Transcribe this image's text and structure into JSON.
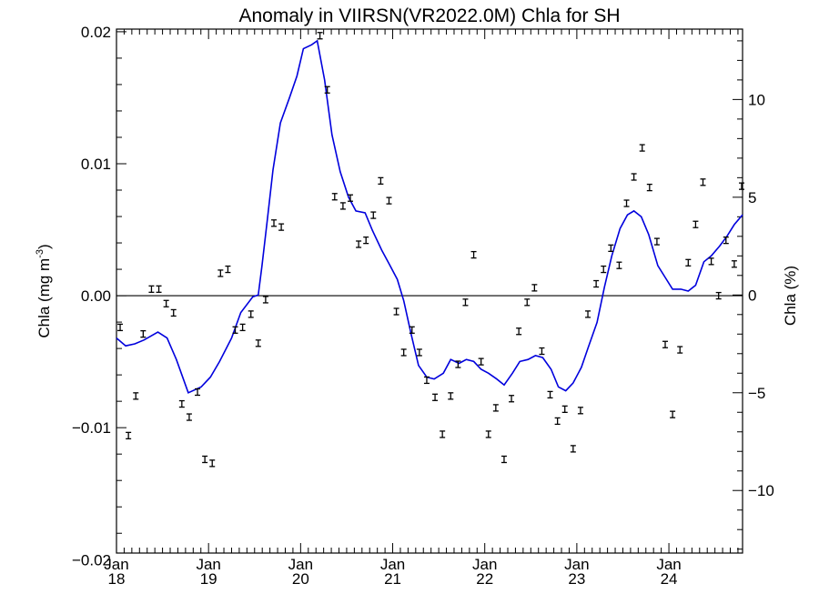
{
  "chart_data": {
    "type": "line",
    "title": "Anomaly in VIIRSN(VR2022.0M) Chla for SH",
    "ylabel_left": "Chla (mg m",
    "ylabel_left_sup": "-3",
    "ylabel_left_close": ")",
    "ylabel_right": "Chla (%)",
    "xlim": [
      2018.0,
      2024.8
    ],
    "ylim_left": [
      -0.0195,
      0.0202
    ],
    "ylim_right": [
      -13.2,
      13.6
    ],
    "x_ticks": [
      {
        "month": "Jan",
        "year": "18",
        "x": 2018.0
      },
      {
        "month": "Jan",
        "year": "19",
        "x": 2019.0
      },
      {
        "month": "Jan",
        "year": "20",
        "x": 2020.0
      },
      {
        "month": "Jan",
        "year": "21",
        "x": 2021.0
      },
      {
        "month": "Jan",
        "year": "22",
        "x": 2022.0
      },
      {
        "month": "Jan",
        "year": "23",
        "x": 2023.0
      },
      {
        "month": "Jan",
        "year": "24",
        "x": 2024.0
      }
    ],
    "y_ticks_left": [
      {
        "label": "0.02",
        "value": 0.02
      },
      {
        "label": "0.01",
        "value": 0.01
      },
      {
        "label": "0.00",
        "value": 0.0
      },
      {
        "label": "−0.01",
        "value": -0.01
      },
      {
        "label": "−0.02",
        "value": -0.02
      }
    ],
    "y_ticks_right": [
      {
        "label": "10",
        "value": 10
      },
      {
        "label": "5",
        "value": 5
      },
      {
        "label": "0",
        "value": 0
      },
      {
        "label": "−5",
        "value": -5
      },
      {
        "label": "−10",
        "value": -10
      }
    ],
    "line_color": "#0000dd",
    "series": [
      {
        "kind": "percent-line",
        "points": [
          [
            2018.0,
            -2.2
          ],
          [
            2018.1,
            -2.6
          ],
          [
            2018.2,
            -2.5
          ],
          [
            2018.3,
            -2.3
          ],
          [
            2018.45,
            -1.9
          ],
          [
            2018.55,
            -2.2
          ],
          [
            2018.65,
            -3.3
          ],
          [
            2018.78,
            -5.0
          ],
          [
            2018.92,
            -4.7
          ],
          [
            2019.02,
            -4.2
          ],
          [
            2019.12,
            -3.4
          ],
          [
            2019.25,
            -2.2
          ],
          [
            2019.35,
            -0.9
          ],
          [
            2019.48,
            -0.1
          ],
          [
            2019.54,
            0.0
          ],
          [
            2019.58,
            1.5
          ],
          [
            2019.64,
            3.9
          ],
          [
            2019.7,
            6.4
          ],
          [
            2019.78,
            8.8
          ],
          [
            2019.88,
            10.1
          ],
          [
            2019.96,
            11.2
          ],
          [
            2020.03,
            12.6
          ],
          [
            2020.12,
            12.8
          ],
          [
            2020.18,
            13.0
          ],
          [
            2020.26,
            11.0
          ],
          [
            2020.34,
            8.2
          ],
          [
            2020.43,
            6.3
          ],
          [
            2020.52,
            5.0
          ],
          [
            2020.6,
            4.3
          ],
          [
            2020.7,
            4.2
          ],
          [
            2020.78,
            3.3
          ],
          [
            2020.88,
            2.3
          ],
          [
            2020.96,
            1.6
          ],
          [
            2021.05,
            0.8
          ],
          [
            2021.12,
            -0.3
          ],
          [
            2021.2,
            -2.0
          ],
          [
            2021.28,
            -3.6
          ],
          [
            2021.37,
            -4.2
          ],
          [
            2021.45,
            -4.3
          ],
          [
            2021.55,
            -4.0
          ],
          [
            2021.63,
            -3.3
          ],
          [
            2021.72,
            -3.5
          ],
          [
            2021.8,
            -3.3
          ],
          [
            2021.88,
            -3.4
          ],
          [
            2021.96,
            -3.8
          ],
          [
            2022.04,
            -4.0
          ],
          [
            2022.13,
            -4.3
          ],
          [
            2022.21,
            -4.6
          ],
          [
            2022.3,
            -4.0
          ],
          [
            2022.38,
            -3.4
          ],
          [
            2022.47,
            -3.3
          ],
          [
            2022.55,
            -3.1
          ],
          [
            2022.63,
            -3.2
          ],
          [
            2022.72,
            -3.8
          ],
          [
            2022.8,
            -4.7
          ],
          [
            2022.88,
            -4.9
          ],
          [
            2022.96,
            -4.5
          ],
          [
            2023.05,
            -3.7
          ],
          [
            2023.13,
            -2.6
          ],
          [
            2023.22,
            -1.4
          ],
          [
            2023.3,
            0.4
          ],
          [
            2023.38,
            2.0
          ],
          [
            2023.47,
            3.4
          ],
          [
            2023.55,
            4.1
          ],
          [
            2023.62,
            4.3
          ],
          [
            2023.7,
            4.0
          ],
          [
            2023.78,
            3.1
          ],
          [
            2023.88,
            1.5
          ],
          [
            2023.96,
            0.9
          ],
          [
            2024.04,
            0.3
          ],
          [
            2024.13,
            0.3
          ],
          [
            2024.21,
            0.2
          ],
          [
            2024.29,
            0.5
          ],
          [
            2024.38,
            1.7
          ],
          [
            2024.46,
            2.0
          ],
          [
            2024.55,
            2.5
          ],
          [
            2024.63,
            3.0
          ],
          [
            2024.71,
            3.6
          ],
          [
            2024.8,
            4.1
          ]
        ]
      },
      {
        "kind": "anomaly-points-with-error-bars",
        "points": [
          [
            2018.04,
            -0.0024
          ],
          [
            2018.13,
            -0.0106
          ],
          [
            2018.21,
            -0.0076
          ],
          [
            2018.29,
            -0.0029
          ],
          [
            2018.38,
            0.0005
          ],
          [
            2018.46,
            0.0005
          ],
          [
            2018.54,
            -0.0006
          ],
          [
            2018.62,
            -0.0013
          ],
          [
            2018.71,
            -0.0082
          ],
          [
            2018.79,
            -0.0092
          ],
          [
            2018.88,
            -0.0073
          ],
          [
            2018.96,
            -0.0124
          ],
          [
            2019.04,
            -0.0127
          ],
          [
            2019.13,
            0.0017
          ],
          [
            2019.21,
            0.002
          ],
          [
            2019.29,
            -0.0026
          ],
          [
            2019.37,
            -0.0024
          ],
          [
            2019.46,
            -0.0014
          ],
          [
            2019.54,
            -0.0036
          ],
          [
            2019.62,
            -0.0003
          ],
          [
            2019.71,
            0.0055
          ],
          [
            2019.79,
            0.0052
          ],
          [
            2020.21,
            0.0197
          ],
          [
            2020.29,
            0.0156
          ],
          [
            2020.37,
            0.0075
          ],
          [
            2020.46,
            0.0068
          ],
          [
            2020.54,
            0.0074
          ],
          [
            2020.63,
            0.0039
          ],
          [
            2020.71,
            0.0042
          ],
          [
            2020.79,
            0.0061
          ],
          [
            2020.87,
            0.0087
          ],
          [
            2020.96,
            0.0072
          ],
          [
            2021.04,
            -0.0012
          ],
          [
            2021.12,
            -0.0043
          ],
          [
            2021.21,
            -0.0026
          ],
          [
            2021.29,
            -0.0043
          ],
          [
            2021.37,
            -0.0064
          ],
          [
            2021.46,
            -0.0077
          ],
          [
            2021.54,
            -0.0105
          ],
          [
            2021.63,
            -0.0076
          ],
          [
            2021.71,
            -0.0052
          ],
          [
            2021.79,
            -0.0005
          ],
          [
            2021.88,
            0.0031
          ],
          [
            2021.96,
            -0.005
          ],
          [
            2022.04,
            -0.0105
          ],
          [
            2022.12,
            -0.0085
          ],
          [
            2022.21,
            -0.0124
          ],
          [
            2022.29,
            -0.0078
          ],
          [
            2022.37,
            -0.0027
          ],
          [
            2022.46,
            -0.0005
          ],
          [
            2022.54,
            0.0006
          ],
          [
            2022.62,
            -0.0042
          ],
          [
            2022.71,
            -0.0075
          ],
          [
            2022.79,
            -0.0095
          ],
          [
            2022.87,
            -0.0086
          ],
          [
            2022.96,
            -0.0116
          ],
          [
            2023.04,
            -0.0087
          ],
          [
            2023.12,
            -0.0014
          ],
          [
            2023.21,
            0.0009
          ],
          [
            2023.29,
            0.002
          ],
          [
            2023.37,
            0.0036
          ],
          [
            2023.46,
            0.0023
          ],
          [
            2023.54,
            0.007
          ],
          [
            2023.62,
            0.009
          ],
          [
            2023.71,
            0.0112
          ],
          [
            2023.79,
            0.0082
          ],
          [
            2023.87,
            0.0041
          ],
          [
            2023.96,
            -0.0037
          ],
          [
            2024.04,
            -0.009
          ],
          [
            2024.12,
            -0.0041
          ],
          [
            2024.21,
            0.0025
          ],
          [
            2024.29,
            0.0054
          ],
          [
            2024.37,
            0.0086
          ],
          [
            2024.46,
            0.0026
          ],
          [
            2024.54,
            0.0
          ],
          [
            2024.62,
            0.0042
          ],
          [
            2024.71,
            0.0024
          ],
          [
            2024.79,
            0.0083
          ]
        ]
      }
    ]
  }
}
